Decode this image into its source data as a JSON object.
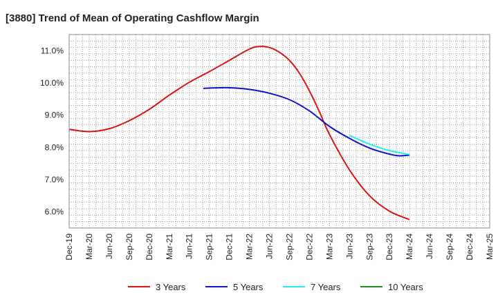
{
  "chart_data": {
    "type": "line",
    "title": "[3880]  Trend of Mean of Operating Cashflow Margin",
    "xlabel": "",
    "ylabel": "",
    "x_tick_labels": [
      "Dec-19",
      "Mar-20",
      "Jun-20",
      "Sep-20",
      "Dec-20",
      "Mar-21",
      "Jun-21",
      "Sep-21",
      "Dec-21",
      "Mar-22",
      "Jun-22",
      "Sep-22",
      "Dec-22",
      "Mar-23",
      "Jun-23",
      "Sep-23",
      "Dec-23",
      "Mar-24",
      "Jun-24",
      "Sep-24",
      "Dec-24",
      "Mar-25"
    ],
    "y_tick_labels": [
      "6.0%",
      "7.0%",
      "8.0%",
      "9.0%",
      "10.0%",
      "11.0%"
    ],
    "y_ticks": [
      6.0,
      7.0,
      8.0,
      9.0,
      10.0,
      11.0
    ],
    "ylim": [
      5.5,
      11.5
    ],
    "grid": true,
    "legend_position": "bottom",
    "series": [
      {
        "name": "3 Years",
        "color": "#dd1111",
        "x_index": [
          0,
          1,
          2,
          3,
          4,
          5,
          6,
          7,
          8,
          9,
          9.5,
          10,
          10.5,
          11,
          11.5,
          12,
          12.5,
          13,
          14,
          15,
          16,
          17
        ],
        "values": [
          8.56,
          8.49,
          8.58,
          8.83,
          9.18,
          9.62,
          10.02,
          10.35,
          10.7,
          11.05,
          11.13,
          11.1,
          10.95,
          10.7,
          10.3,
          9.75,
          9.1,
          8.4,
          7.3,
          6.5,
          6.02,
          5.76
        ]
      },
      {
        "name": "5 Years",
        "color": "#1111cc",
        "x_index": [
          6.7,
          7,
          8,
          9,
          10,
          11,
          12,
          13,
          14,
          15,
          16,
          16.5,
          17
        ],
        "values": [
          9.83,
          9.84,
          9.85,
          9.8,
          9.68,
          9.48,
          9.13,
          8.65,
          8.28,
          7.98,
          7.79,
          7.74,
          7.76
        ]
      },
      {
        "name": "7 Years",
        "color": "#22eeee",
        "x_index": [
          14,
          15,
          16,
          17
        ],
        "values": [
          8.37,
          8.1,
          7.9,
          7.78
        ]
      },
      {
        "name": "10 Years",
        "color": "#228822",
        "x_index": [],
        "values": []
      }
    ]
  }
}
